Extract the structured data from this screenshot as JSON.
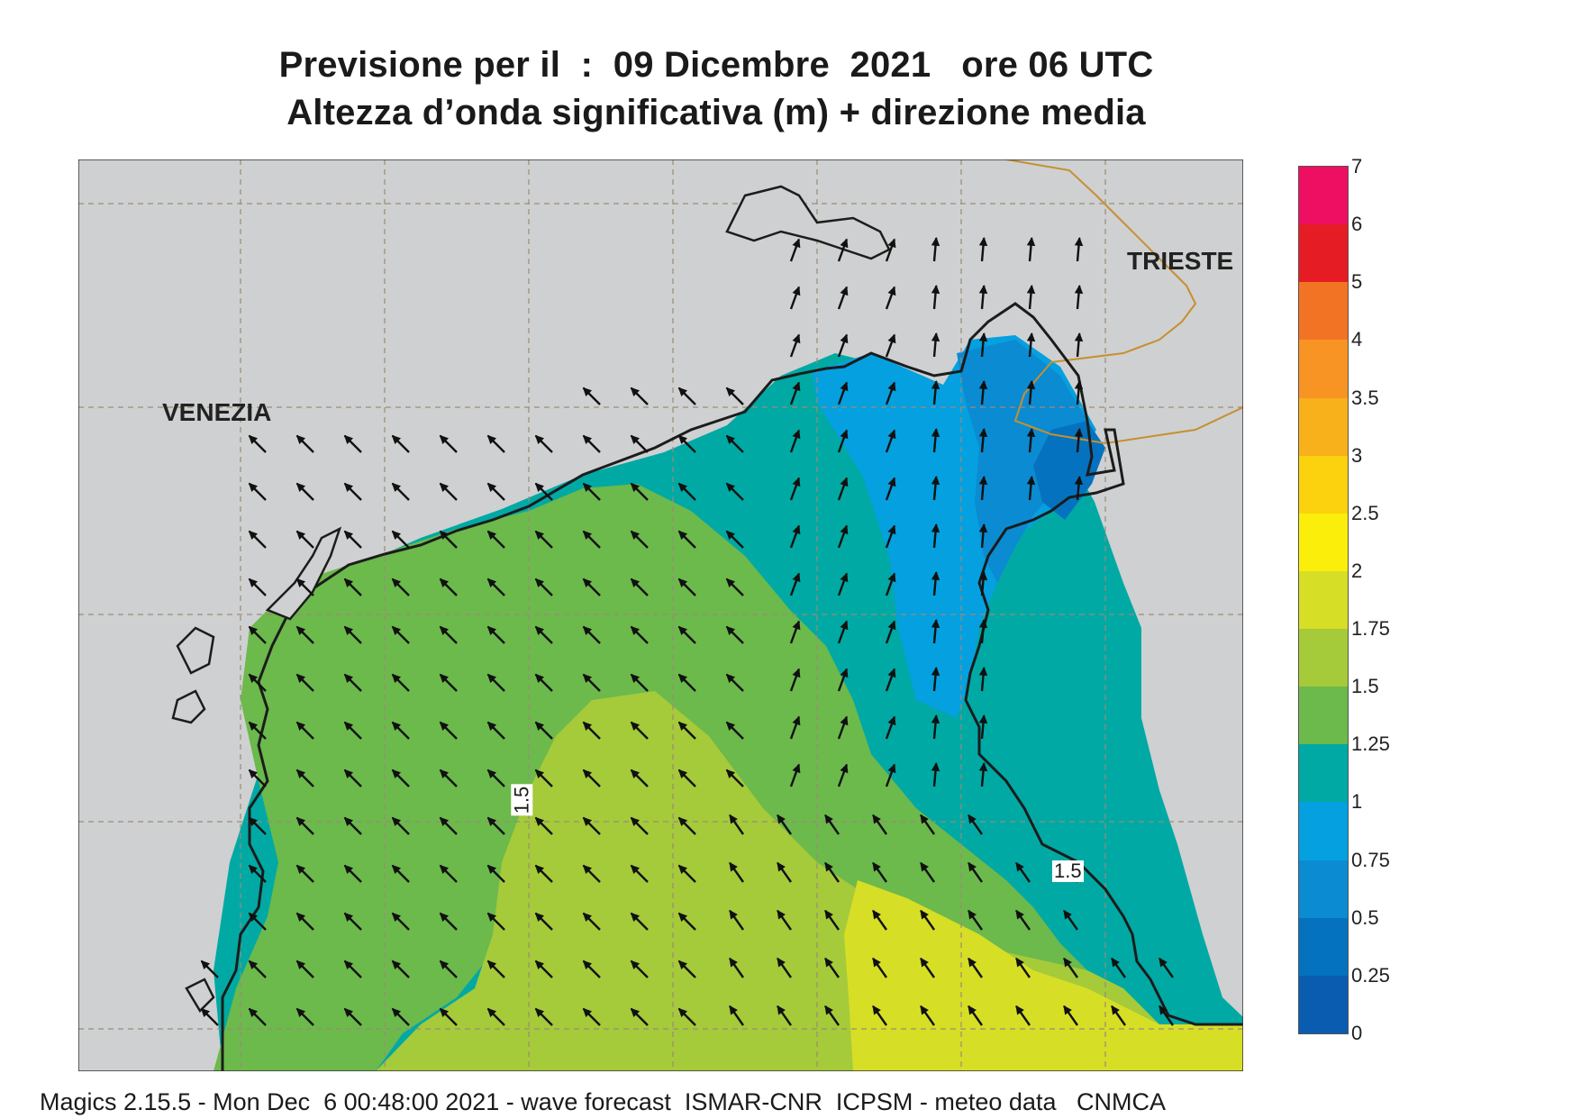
{
  "title": {
    "line1": "Previsione per il  :  09 Dicembre  2021   ore 06 UTC",
    "line2": "Altezza d’onda significativa (m) + direzione media"
  },
  "map": {
    "places": {
      "venezia": "VENEZIA",
      "trieste": "TRIESTE"
    },
    "contour_labels": [
      "1.5",
      "1.5"
    ],
    "colors": {
      "land": "#cfd0d1",
      "coast": "#1c1c1c",
      "grid": "#9a8c7a",
      "border": "#c59030",
      "arrow": "#111111"
    }
  },
  "legend": {
    "ticks": [
      "7",
      "6",
      "5",
      "4",
      "3.5",
      "3",
      "2.5",
      "2",
      "1.75",
      "1.5",
      "1.25",
      "1",
      "0.75",
      "0.5",
      "0.25",
      "0"
    ],
    "colors": [
      "#ee0f63",
      "#e51c24",
      "#f37324",
      "#f79424",
      "#f9b11b",
      "#fcd20f",
      "#fbee0a",
      "#d7de26",
      "#a5ca3a",
      "#6cb94c",
      "#00a9a4",
      "#05a0df",
      "#0b8bd2",
      "#0572c0",
      "#0a5cb0"
    ]
  },
  "footer": "Magics 2.15.5 - Mon Dec  6 00:48:00 2021 - wave forecast  ISMAR-CNR  ICPSM - meteo data   CNMCA"
}
